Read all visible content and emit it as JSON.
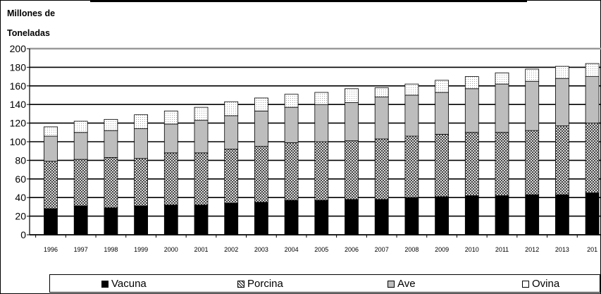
{
  "chart_data": {
    "type": "bar",
    "stacked": true,
    "ylabel_lines": [
      "Millones de",
      "Toneladas"
    ],
    "ylim": [
      0,
      200
    ],
    "yticks": [
      0,
      20,
      40,
      60,
      80,
      100,
      120,
      140,
      160,
      180,
      200
    ],
    "categories": [
      "1996",
      "1997",
      "1998",
      "1999",
      "2000",
      "2001",
      "2002",
      "2003",
      "2004",
      "2005",
      "2006",
      "2007",
      "2008",
      "2009",
      "2010",
      "2011",
      "2012",
      "2013",
      "201"
    ],
    "series": [
      {
        "name": "Vacuna",
        "color": "#000000",
        "pattern": "solid-black",
        "values": [
          28,
          31,
          29,
          31,
          32,
          32,
          34,
          35,
          37,
          37,
          38,
          38,
          40,
          41,
          42,
          42,
          43,
          43,
          45
        ]
      },
      {
        "name": "Porcina",
        "color": "#555555",
        "pattern": "crosshatch",
        "values": [
          51,
          50,
          54,
          51,
          56,
          56,
          58,
          60,
          62,
          63,
          63,
          65,
          66,
          67,
          68,
          68,
          69,
          74,
          75
        ]
      },
      {
        "name": "Ave",
        "color": "#bdbdbd",
        "pattern": "light-gray",
        "values": [
          27,
          29,
          29,
          32,
          31,
          35,
          36,
          38,
          38,
          40,
          41,
          45,
          44,
          45,
          47,
          52,
          53,
          51,
          50
        ]
      },
      {
        "name": "Ovina",
        "color": "#ffffff",
        "pattern": "white-dotted",
        "values": [
          10,
          12,
          12,
          15,
          14,
          14,
          15,
          14,
          14,
          13,
          15,
          10,
          12,
          13,
          13,
          12,
          13,
          13,
          14
        ]
      }
    ],
    "grid": true,
    "legend": "bottom"
  }
}
